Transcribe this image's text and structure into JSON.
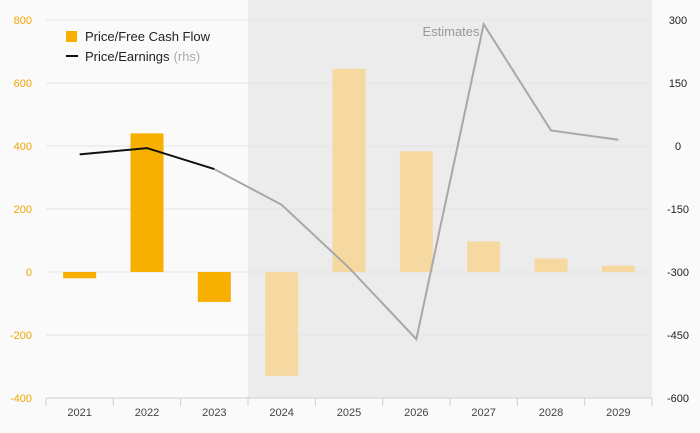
{
  "chart_data": {
    "type": "bar+line",
    "categories": [
      "2021",
      "2022",
      "2023",
      "2024",
      "2025",
      "2026",
      "2027",
      "2028",
      "2029"
    ],
    "estimates_label": "Estimates",
    "estimates_from_index": 3,
    "colors": {
      "bar_actual": "#f7b000",
      "bar_estimate": "#f5d9a0",
      "line_actual": "#111111",
      "line_estimate": "#a8a8a8",
      "left_axis_text": "#f0a500",
      "estimate_shade": "#ececec"
    },
    "series": [
      {
        "name": "Price/Free Cash Flow",
        "type": "bar",
        "axis": "left",
        "values": [
          -20,
          440,
          -95,
          -330,
          645,
          383,
          97,
          43,
          20
        ]
      },
      {
        "name": "Price/Earnings",
        "axis_note": "(rhs)",
        "type": "line",
        "axis": "right",
        "values": [
          -20,
          -5,
          -55,
          -140,
          -290,
          -460,
          290,
          37,
          15
        ]
      }
    ],
    "left_axis": {
      "ylim": [
        -400,
        800
      ],
      "ticks": [
        "800",
        "600",
        "400",
        "200",
        "0",
        "-200",
        "-400"
      ]
    },
    "right_axis": {
      "ylim": [
        -600,
        300
      ],
      "ticks": [
        "300",
        "150",
        "0",
        "-150",
        "-300",
        "-450",
        "-600"
      ]
    },
    "grid": true,
    "legend_position": "top-left"
  }
}
